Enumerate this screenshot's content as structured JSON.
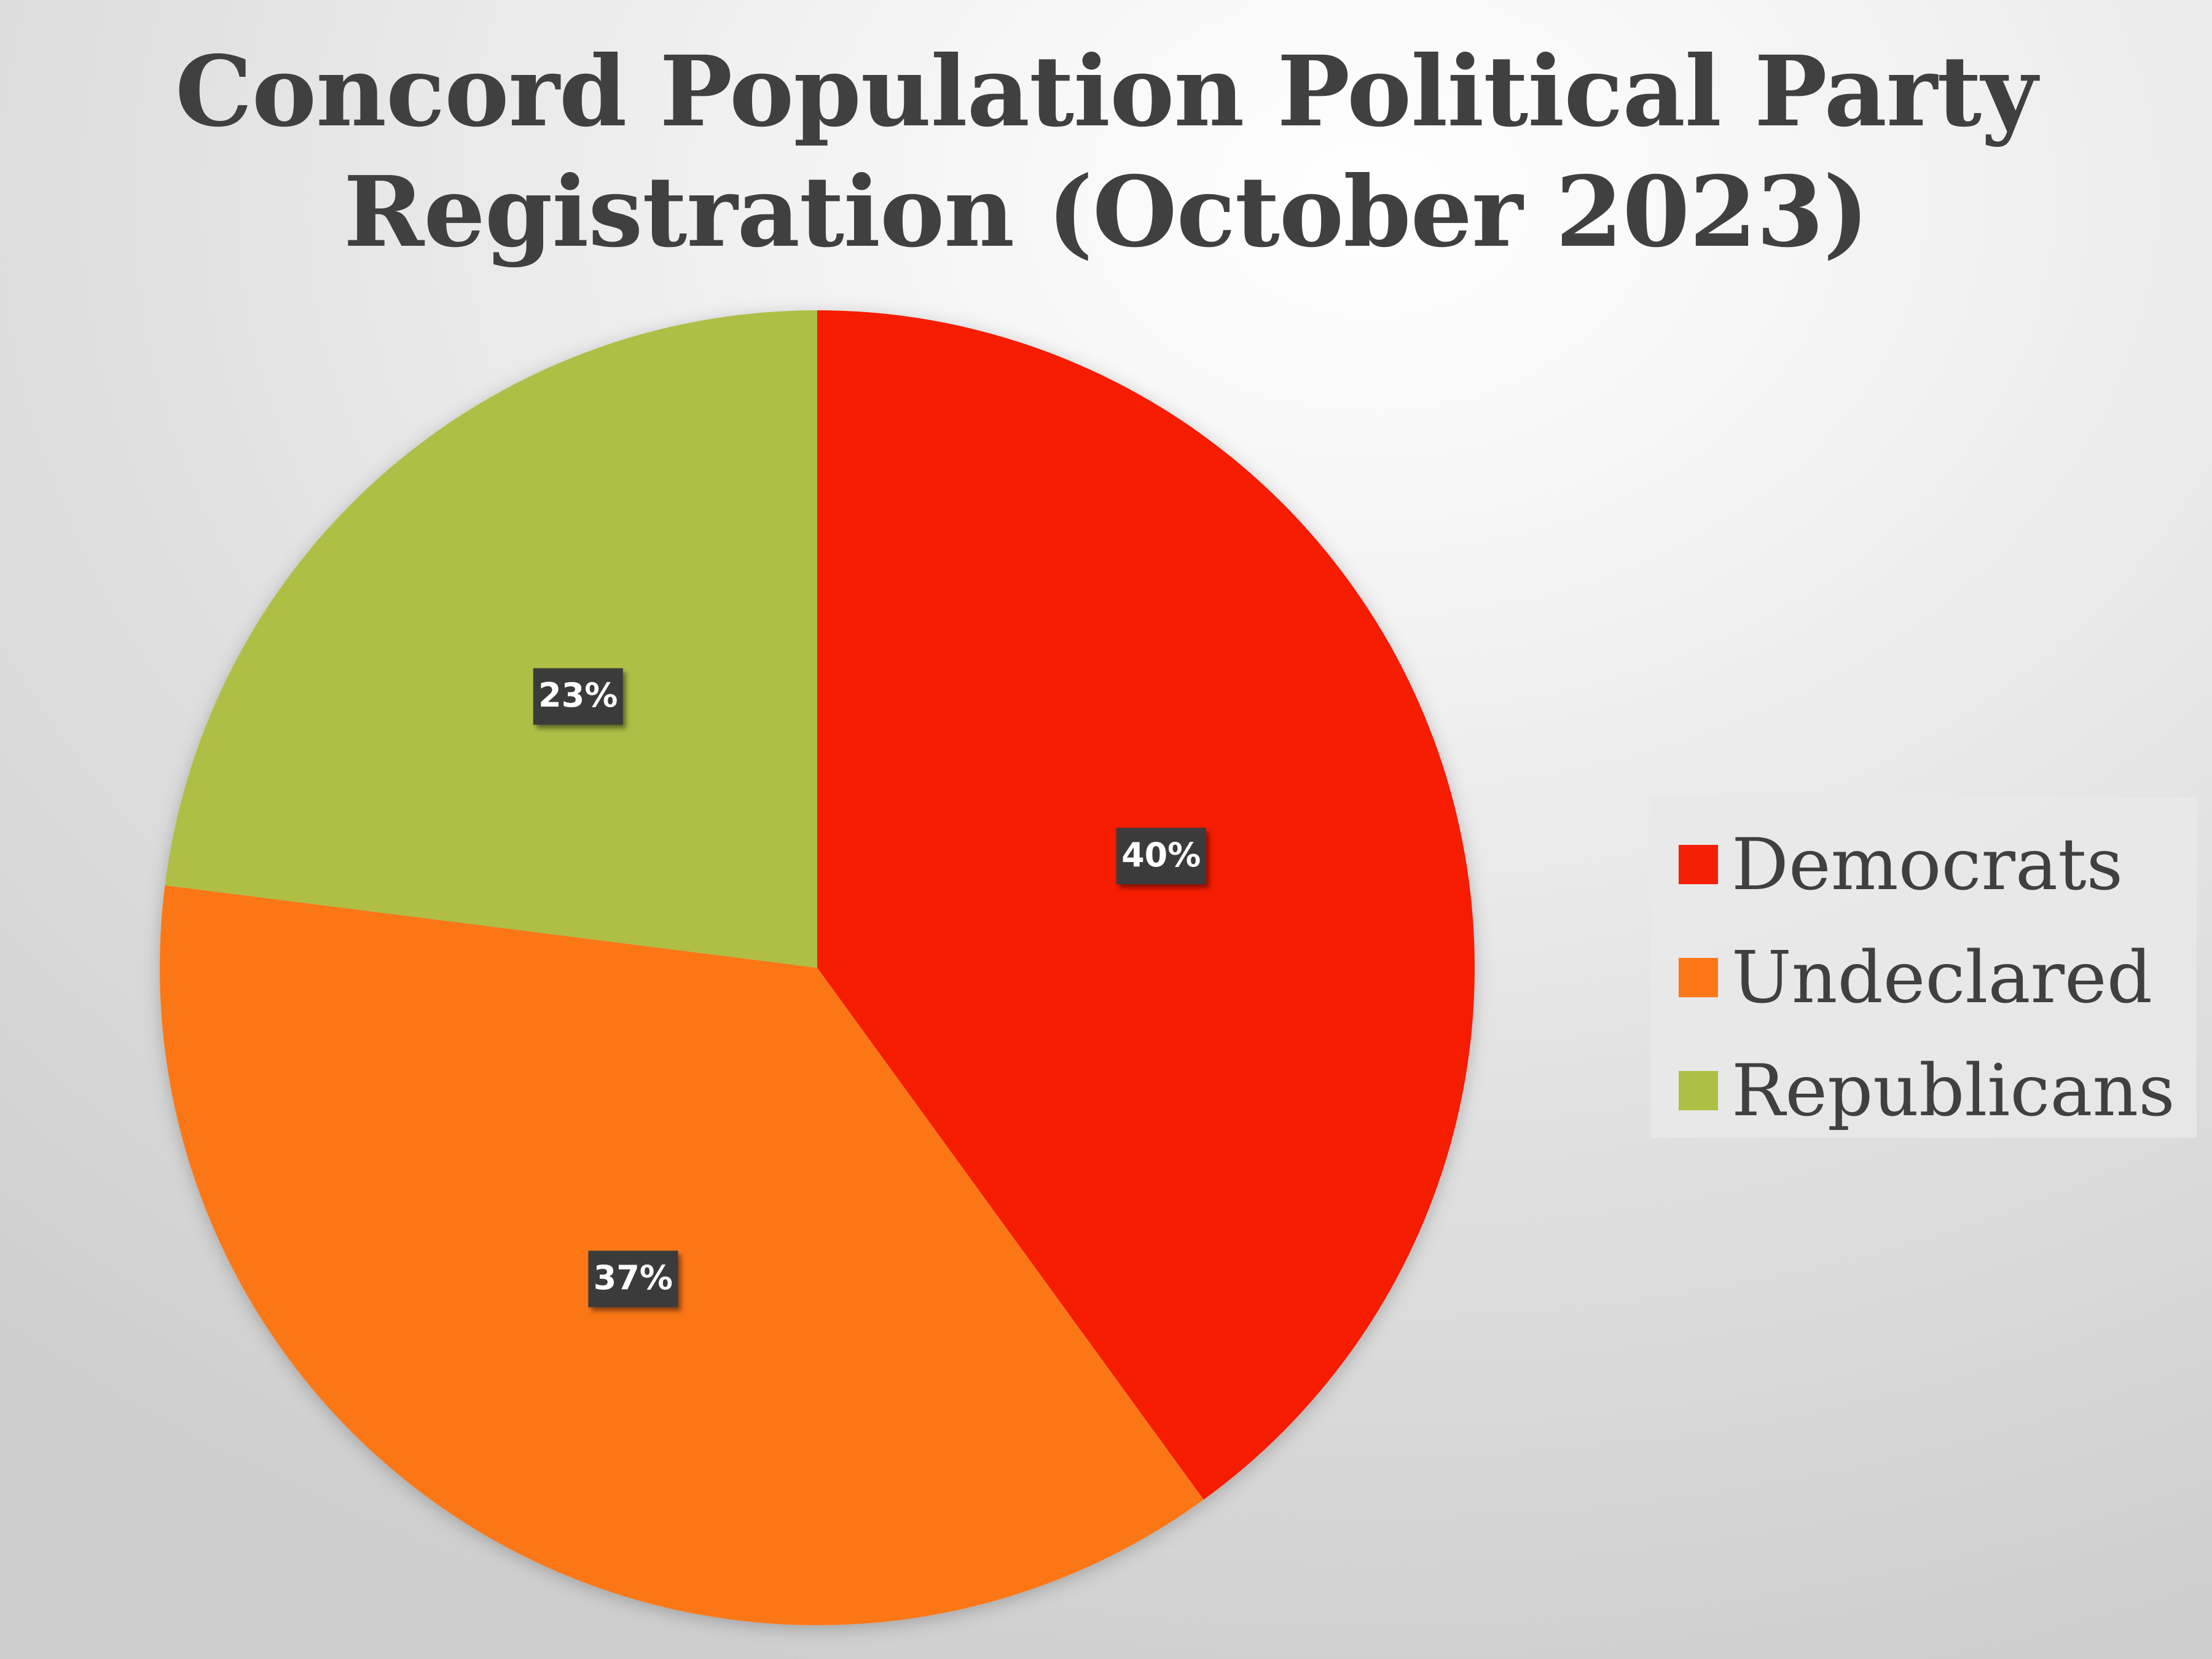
{
  "chart_data": {
    "type": "pie",
    "title": [
      "Concord Population Political Party",
      "Registration (October 2023)"
    ],
    "categories": [
      "Democrats",
      "Undeclared",
      "Republicans"
    ],
    "values": [
      40,
      37,
      23
    ],
    "value_labels": [
      "40%",
      "37%",
      "23%"
    ],
    "colors": [
      "#f51f05",
      "#fb7718",
      "#afbf44"
    ],
    "legend_position": "right",
    "start_angle_deg": 0,
    "direction": "clockwise"
  }
}
